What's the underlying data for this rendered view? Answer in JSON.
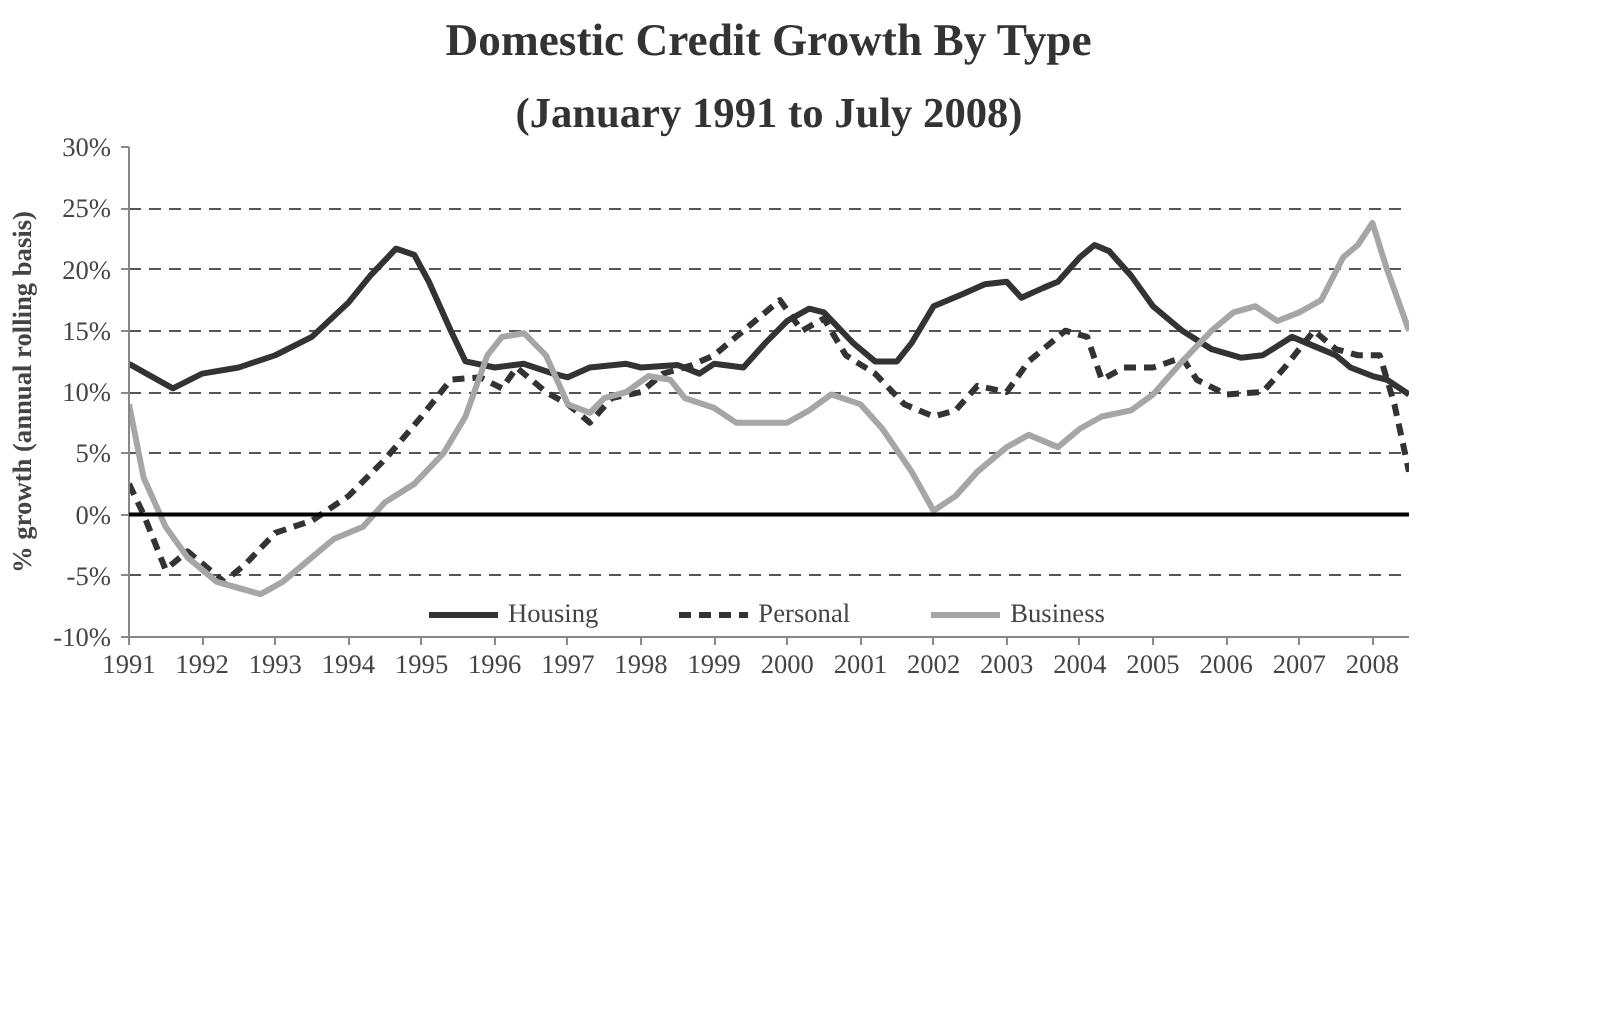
{
  "chart_data": {
    "type": "line",
    "title": "Domestic Credit Growth By Type",
    "subtitle": "(January 1991 to July 2008)",
    "ylabel": "% growth (annual rolling basis)",
    "xlim": [
      1991,
      2008.5
    ],
    "xticks": [
      1991,
      1992,
      1993,
      1994,
      1995,
      1996,
      1997,
      1998,
      1999,
      2000,
      2001,
      2002,
      2003,
      2004,
      2005,
      2006,
      2007,
      2008
    ],
    "ylim": [
      -10,
      30
    ],
    "yticks": [
      {
        "value": -10,
        "label": "-10%"
      },
      {
        "value": -5,
        "label": "-5%"
      },
      {
        "value": 0,
        "label": "0%"
      },
      {
        "value": 5,
        "label": "5%"
      },
      {
        "value": 10,
        "label": "10%"
      },
      {
        "value": 15,
        "label": "15%"
      },
      {
        "value": 20,
        "label": "20%"
      },
      {
        "value": 25,
        "label": "25%"
      },
      {
        "value": 30,
        "label": "30%"
      }
    ],
    "grid": "y",
    "legend": "bottom",
    "ref_lines": [
      {
        "axis": "y",
        "value": 0,
        "color": "#000000",
        "line_style": "solid"
      }
    ],
    "series": [
      {
        "name": "Housing",
        "color": "#333333",
        "line_style": "solid",
        "x": [
          1991,
          1991.3,
          1991.6,
          1992,
          1992.5,
          1993,
          1993.5,
          1994,
          1994.3,
          1994.65,
          1994.9,
          1995.1,
          1995.4,
          1995.6,
          1996,
          1996.4,
          1996.8,
          1997,
          1997.3,
          1997.8,
          1998,
          1998.5,
          1998.8,
          1999,
          1999.4,
          1999.7,
          2000,
          2000.3,
          2000.5,
          2000.9,
          2001.2,
          2001.5,
          2001.7,
          2002,
          2002.4,
          2002.7,
          2003,
          2003.2,
          2003.5,
          2003.7,
          2004,
          2004.2,
          2004.4,
          2004.7,
          2005,
          2005.4,
          2005.8,
          2006.2,
          2006.5,
          2006.9,
          2007.3,
          2007.5,
          2007.7,
          2008,
          2008.2,
          2008.5
        ],
        "values": [
          12.3,
          11.3,
          10.3,
          11.5,
          12,
          13,
          14.5,
          17.3,
          19.5,
          21.7,
          21.2,
          19,
          15,
          12.5,
          12,
          12.3,
          11.5,
          11.2,
          12,
          12.3,
          12,
          12.2,
          11.5,
          12.3,
          12,
          14,
          15.8,
          16.8,
          16.5,
          14,
          12.5,
          12.5,
          14,
          17,
          18,
          18.8,
          19,
          17.7,
          18.5,
          19,
          21,
          22,
          21.5,
          19.5,
          17,
          15,
          13.5,
          12.8,
          13,
          14.5,
          13.5,
          13,
          12,
          11.3,
          11,
          9.8
        ]
      },
      {
        "name": "Personal",
        "color": "#333333",
        "line_style": "dashed",
        "x": [
          1991,
          1991.2,
          1991.5,
          1991.8,
          1992.3,
          1992.6,
          1993,
          1993.5,
          1994,
          1994.5,
          1995,
          1995.4,
          1995.8,
          1996.1,
          1996.3,
          1996.7,
          1997,
          1997.3,
          1997.6,
          1998,
          1998.3,
          1998.7,
          1999,
          1999.5,
          1999.9,
          2000.2,
          2000.5,
          2000.8,
          2001.2,
          2001.6,
          2002,
          2002.3,
          2002.6,
          2003,
          2003.3,
          2003.8,
          2004.1,
          2004.3,
          2004.6,
          2005,
          2005.4,
          2005.6,
          2006,
          2006.5,
          2006.8,
          2007.2,
          2007.5,
          2007.8,
          2008.1,
          2008.3,
          2008.5
        ],
        "values": [
          2.5,
          0,
          -4.5,
          -3,
          -5.5,
          -4,
          -1.5,
          -0.5,
          1.5,
          4.5,
          8,
          11,
          11.2,
          10.3,
          12,
          10,
          9,
          7.5,
          9.5,
          10,
          11.5,
          12.2,
          13,
          15.5,
          17.5,
          15,
          16,
          13,
          11.5,
          9,
          8,
          8.5,
          10.5,
          10,
          12.5,
          15,
          14.5,
          11,
          12,
          12,
          12.8,
          11,
          9.8,
          10,
          12,
          15,
          13.5,
          13,
          13,
          9,
          3.5
        ]
      },
      {
        "name": "Business",
        "color": "#a6a6a6",
        "line_style": "solid",
        "x": [
          1991,
          1991.2,
          1991.5,
          1991.8,
          1992.2,
          1992.5,
          1992.8,
          1993.1,
          1993.5,
          1993.8,
          1994.2,
          1994.5,
          1994.9,
          1995.3,
          1995.6,
          1995.9,
          1996.1,
          1996.4,
          1996.7,
          1997,
          1997.3,
          1997.5,
          1997.8,
          1998.1,
          1998.4,
          1998.6,
          1999,
          1999.3,
          2000,
          2000.3,
          2000.6,
          2001,
          2001.3,
          2001.7,
          2002,
          2002.3,
          2002.6,
          2003,
          2003.3,
          2003.7,
          2004,
          2004.3,
          2004.7,
          2005,
          2005.4,
          2005.8,
          2006.1,
          2006.4,
          2006.7,
          2007,
          2007.3,
          2007.6,
          2007.8,
          2008,
          2008.2,
          2008.5
        ],
        "values": [
          9,
          3,
          -1,
          -3.5,
          -5.5,
          -6,
          -6.5,
          -5.5,
          -3.5,
          -2,
          -1,
          1,
          2.5,
          5,
          8,
          13,
          14.5,
          14.8,
          13,
          9,
          8.3,
          9.5,
          10,
          11.3,
          11,
          9.5,
          8.7,
          7.5,
          7.5,
          8.5,
          9.8,
          9,
          7,
          3.5,
          0.3,
          1.5,
          3.5,
          5.5,
          6.5,
          5.5,
          7,
          8,
          8.5,
          9.8,
          12.5,
          15,
          16.5,
          17,
          15.8,
          16.5,
          17.5,
          21,
          22,
          23.8,
          20,
          15
        ]
      }
    ]
  }
}
